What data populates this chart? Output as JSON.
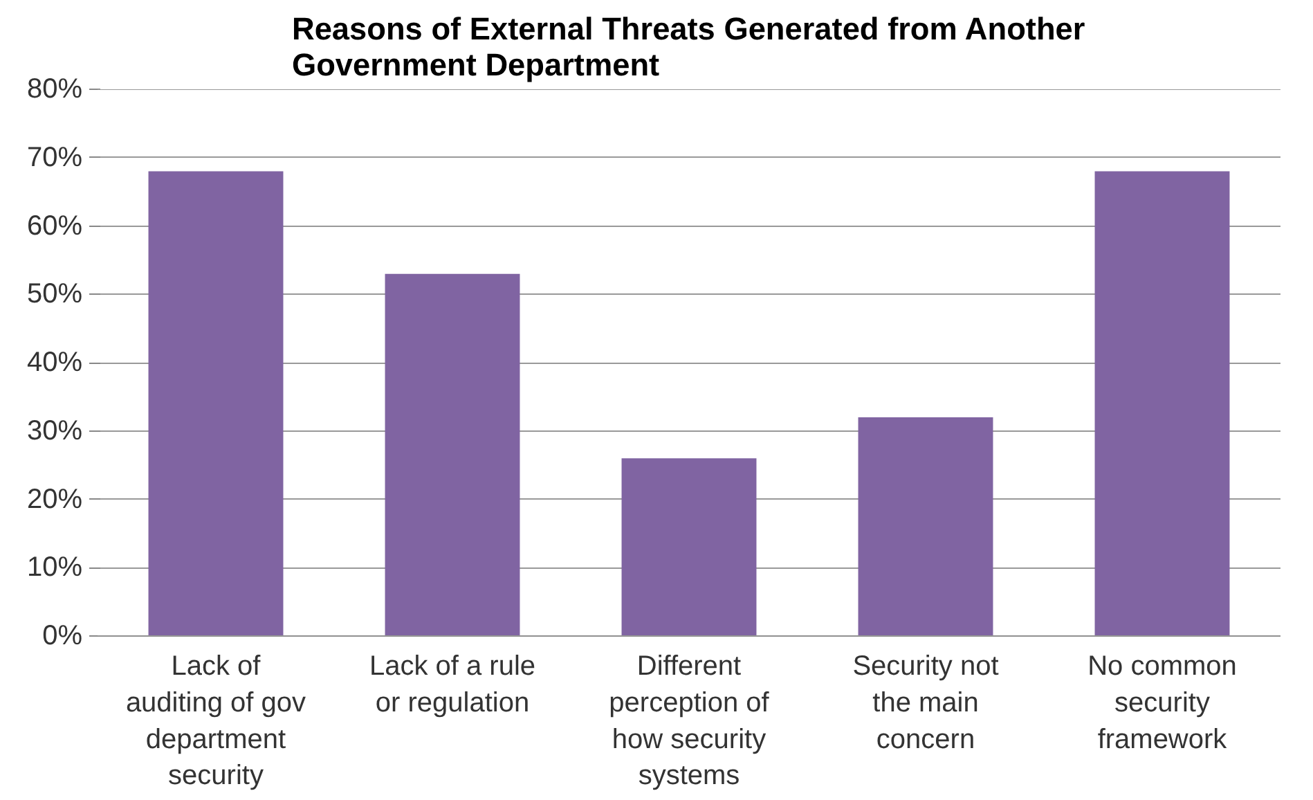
{
  "chart_data": {
    "type": "bar",
    "title": "Reasons of External Threats Generated from Another Government Department",
    "categories": [
      "Lack of auditing of gov department security",
      "Lack of a rule or regulation",
      "Different perception of how security systems",
      "Security not the main concern",
      "No common security framework"
    ],
    "values": [
      68,
      53,
      26,
      32,
      68
    ],
    "color": "#8064a2",
    "ylim": [
      0,
      80
    ],
    "yticks": [
      {
        "value": 0,
        "label": "0%"
      },
      {
        "value": 10,
        "label": "10%"
      },
      {
        "value": 20,
        "label": "20%"
      },
      {
        "value": 30,
        "label": "30%"
      },
      {
        "value": 40,
        "label": "40%"
      },
      {
        "value": 50,
        "label": "50%"
      },
      {
        "value": 60,
        "label": "60%"
      },
      {
        "value": 70,
        "label": "70%"
      },
      {
        "value": 80,
        "label": "80%"
      }
    ],
    "grid": "y"
  }
}
